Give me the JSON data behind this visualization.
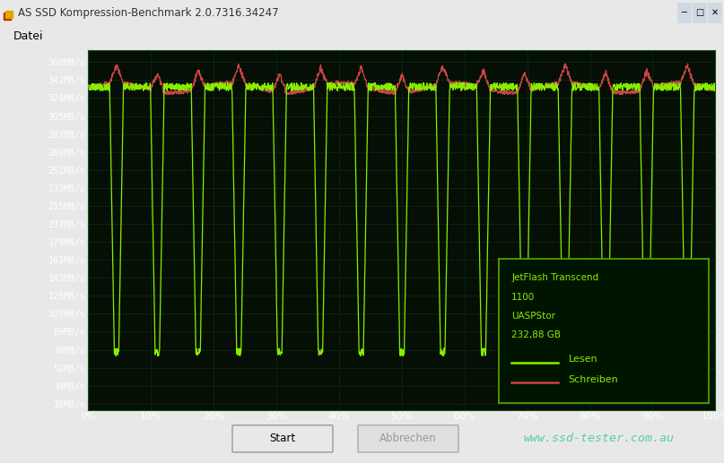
{
  "title": "AS SSD Kompression-Benchmark 2.0.7316.34247",
  "menu_item": "Datei",
  "window_bg": "#e8e8e8",
  "titlebar_bg": "#c8d8e8",
  "plot_bg_color": "#050f05",
  "grid_color": "#0a2a0a",
  "ytick_labels": [
    "360MB/s",
    "342MB/s",
    "324MB/s",
    "305MB/s",
    "287MB/s",
    "269MB/s",
    "251MB/s",
    "233MB/s",
    "215MB/s",
    "197MB/s",
    "179MB/s",
    "161MB/s",
    "143MB/s",
    "125MB/s",
    "107MB/s",
    "89MB/s",
    "70MB/s",
    "52MB/s",
    "34MB/s",
    "16MB/s"
  ],
  "ytick_values": [
    360,
    342,
    324,
    305,
    287,
    269,
    251,
    233,
    215,
    197,
    179,
    161,
    143,
    125,
    107,
    89,
    70,
    52,
    34,
    16
  ],
  "xtick_labels": [
    "0%",
    "10%",
    "20%",
    "30%",
    "40%",
    "50%",
    "60%",
    "70%",
    "80%",
    "90%",
    "100%"
  ],
  "xtick_values": [
    0,
    10,
    20,
    30,
    40,
    50,
    60,
    70,
    80,
    90,
    100
  ],
  "ylim": [
    10,
    372
  ],
  "xlim": [
    0,
    100
  ],
  "read_color": "#88ee00",
  "write_color": "#cc4444",
  "legend_bg": "#001500",
  "legend_border": "#55aa00",
  "legend_text_color": "#88ee00",
  "info_text_lines": [
    "JetFlash Transcend",
    "1100",
    "UASPStor",
    "232,88 GB"
  ],
  "legend_lesen": "Lesen",
  "legend_schreiben": "Schreiben",
  "watermark": "www.ssd-tester.com.au",
  "watermark_bg": "#3a3a3a",
  "watermark_color": "#55ccaa",
  "btn_start": "Start",
  "btn_abbrechen": "Abbrechen",
  "dip_positions": [
    4.5,
    11.0,
    17.5,
    24.0,
    30.5,
    37.0,
    43.5,
    50.0,
    56.5,
    63.0,
    69.5,
    76.0,
    82.5,
    89.0,
    95.5
  ],
  "read_base": 335,
  "read_dip": 68,
  "write_base": 334,
  "write_peak_delta": 18,
  "write_valley_delta": -10
}
